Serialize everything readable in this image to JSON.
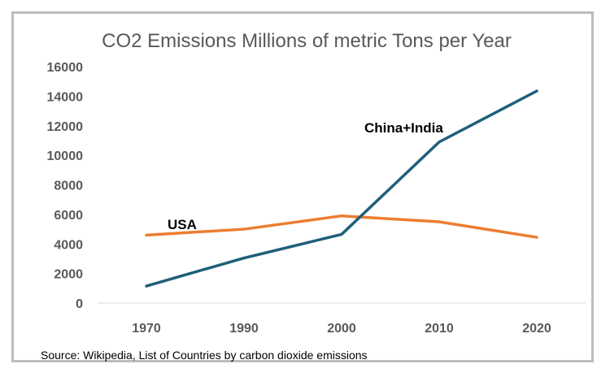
{
  "chart_data": {
    "type": "line",
    "title": "CO2 Emissions Millions of metric Tons per Year",
    "categories": [
      "1970",
      "1990",
      "2000",
      "2010",
      "2020"
    ],
    "ylim": [
      0,
      16000
    ],
    "yticks": [
      "0",
      "2000",
      "4000",
      "6000",
      "8000",
      "10000",
      "12000",
      "14000",
      "16000"
    ],
    "grid": false,
    "series": [
      {
        "name": "USA",
        "color": "#ED7D31",
        "values": [
          4600,
          5000,
          5900,
          5500,
          4450
        ]
      },
      {
        "name": "China+India",
        "color": "#1F5F7A",
        "values": [
          1150,
          3050,
          4650,
          10900,
          14350
        ]
      }
    ],
    "xlabel": "",
    "ylabel": ""
  },
  "source": "Source: Wikipedia, List of Countries by carbon dioxide emissions"
}
